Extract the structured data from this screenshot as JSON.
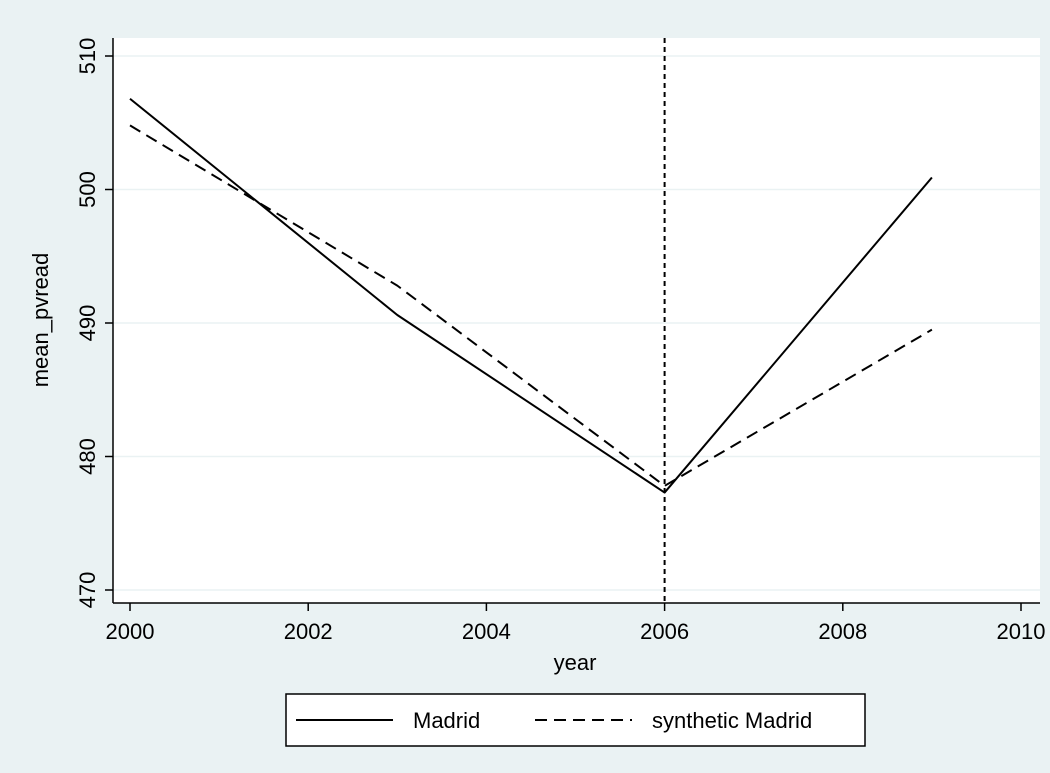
{
  "chart_data": {
    "type": "line",
    "xlabel": "year",
    "ylabel": "mean_pvread",
    "xlim": [
      2000,
      2010
    ],
    "ylim": [
      470,
      510
    ],
    "x_ticks": [
      2000,
      2002,
      2004,
      2006,
      2008,
      2010
    ],
    "y_ticks": [
      470,
      480,
      490,
      500,
      510
    ],
    "vline": 2006,
    "grid": "horizontal",
    "legend_position": "bottom",
    "series": [
      {
        "name": "Madrid",
        "style": "solid",
        "x": [
          2000,
          2003,
          2006,
          2009
        ],
        "y": [
          506.8,
          490.6,
          477.3,
          500.9
        ]
      },
      {
        "name": "synthetic Madrid",
        "style": "dashed",
        "x": [
          2000,
          2003,
          2006,
          2009
        ],
        "y": [
          504.8,
          492.8,
          477.8,
          489.5
        ]
      }
    ]
  },
  "colors": {
    "background": "#eaf2f3",
    "plot_area": "#ffffff",
    "grid": "#eaf2f3",
    "line": "#000000"
  }
}
